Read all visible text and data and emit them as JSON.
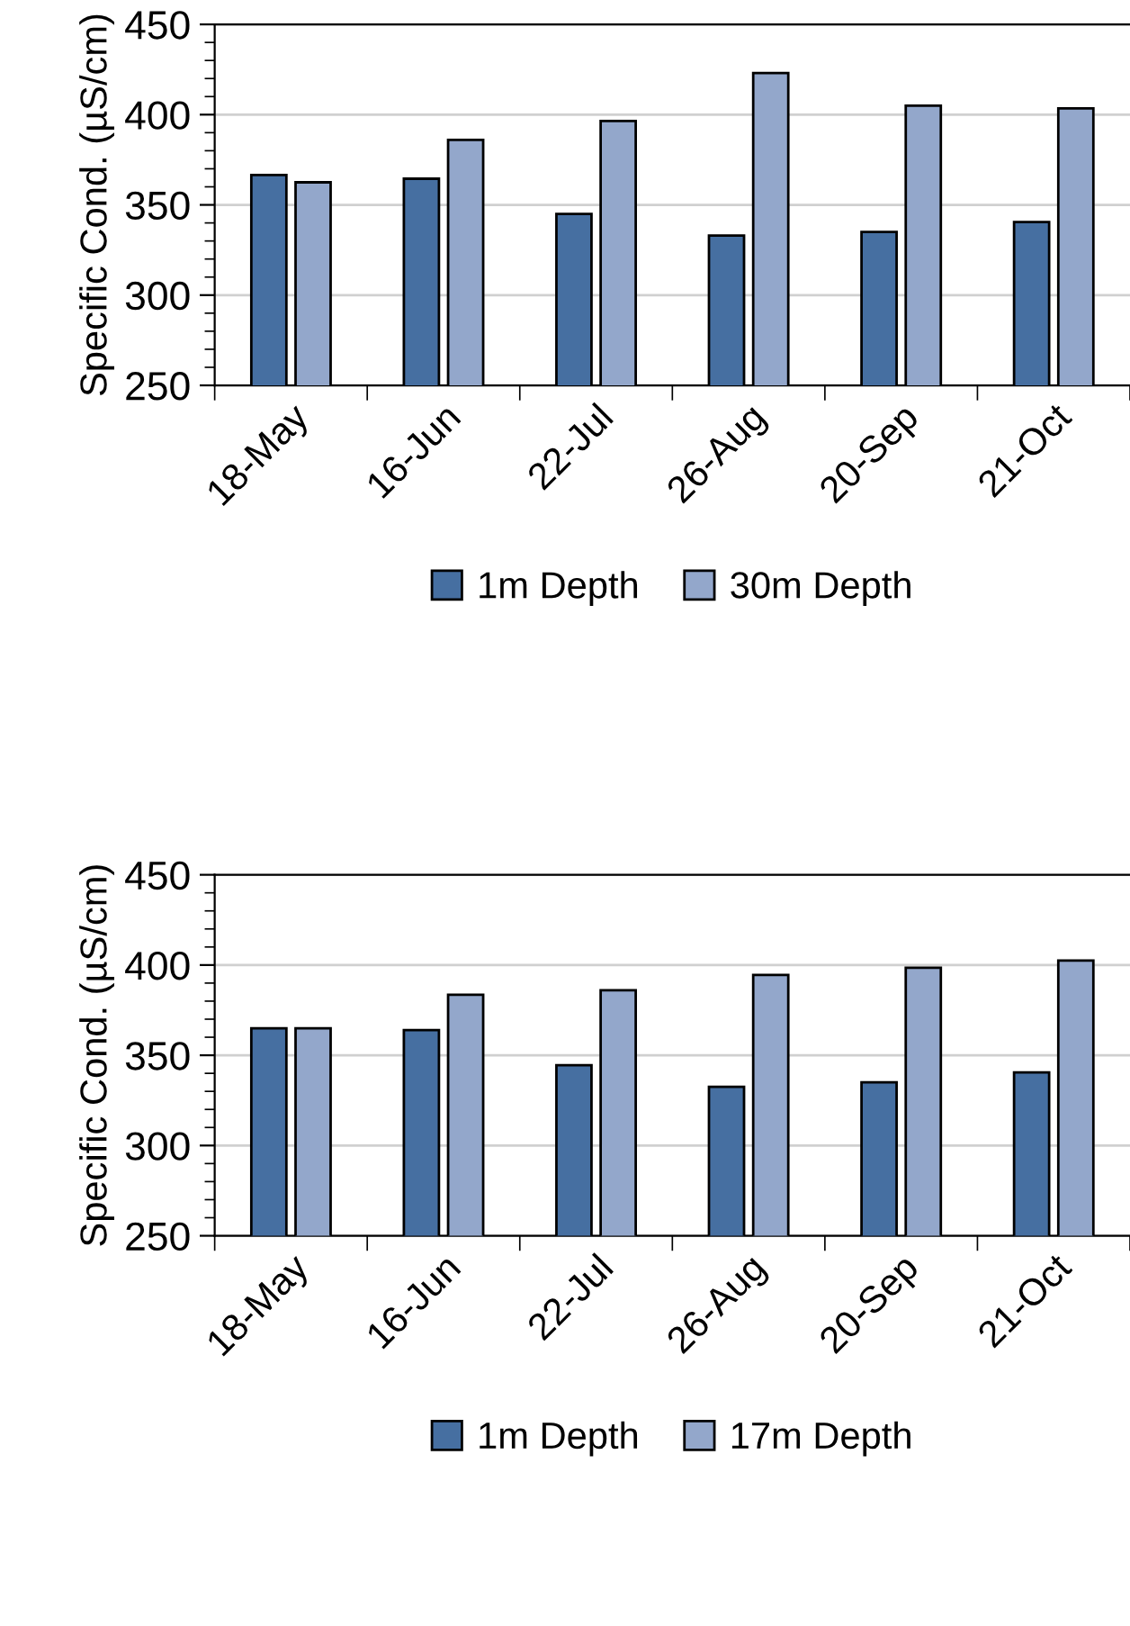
{
  "chart_data": [
    {
      "type": "bar",
      "ylabel": "Specific Cond. (µS/cm)",
      "categories": [
        "18-May",
        "16-Jun",
        "22-Jul",
        "26-Aug",
        "20-Sep",
        "21-Oct"
      ],
      "series": [
        {
          "name": "1m Depth",
          "color": "#466fa1",
          "values": [
            366.5,
            364.5,
            345,
            333,
            335,
            340.5
          ]
        },
        {
          "name": "30m Depth",
          "color": "#93a7cb",
          "values": [
            362.5,
            386,
            396.5,
            423,
            405,
            403.5
          ]
        }
      ],
      "ylim": [
        250,
        450
      ],
      "yticks": [
        250,
        300,
        350,
        400,
        450
      ],
      "grid": "y",
      "legend": "bottom"
    },
    {
      "type": "bar",
      "ylabel": "Specific Cond. (µS/cm)",
      "categories": [
        "18-May",
        "16-Jun",
        "22-Jul",
        "26-Aug",
        "20-Sep",
        "21-Oct"
      ],
      "series": [
        {
          "name": "1m Depth",
          "color": "#466fa1",
          "values": [
            365,
            364,
            344.5,
            332.5,
            335,
            340.5
          ]
        },
        {
          "name": "17m Depth",
          "color": "#93a7cb",
          "values": [
            365,
            383.5,
            386,
            394.5,
            398.5,
            402.5
          ]
        }
      ],
      "ylim": [
        250,
        450
      ],
      "yticks": [
        250,
        300,
        350,
        400,
        450
      ],
      "grid": "y",
      "legend": "bottom"
    }
  ]
}
